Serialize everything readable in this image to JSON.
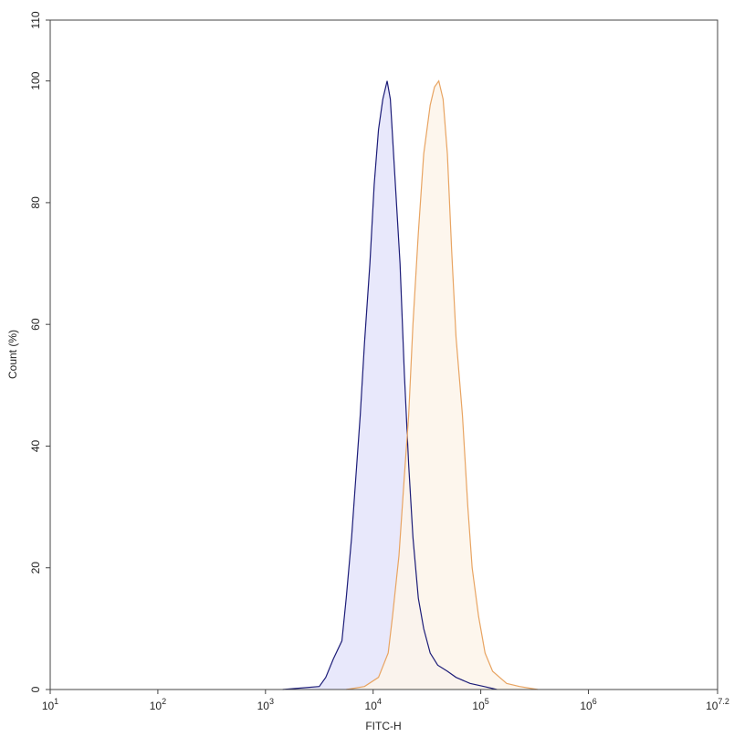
{
  "chart_data": {
    "type": "area",
    "xlabel": "FITC-H",
    "ylabel": "Count (%)",
    "xscale": "log",
    "xlim": [
      10,
      15848932
    ],
    "ylim": [
      0,
      110
    ],
    "xticks": [
      {
        "value": 10,
        "label": "10^1"
      },
      {
        "value": 100,
        "label": "10^2"
      },
      {
        "value": 1000,
        "label": "10^3"
      },
      {
        "value": 10000,
        "label": "10^4"
      },
      {
        "value": 100000,
        "label": "10^5"
      },
      {
        "value": 1000000,
        "label": "10^6"
      },
      {
        "value": 15848932,
        "label": "10^7.2"
      }
    ],
    "yticks": [
      0,
      20,
      40,
      60,
      80,
      100,
      110
    ],
    "series": [
      {
        "color": "#1c1c78",
        "fill": "#e4e4fa",
        "x": [
          1445,
          3162,
          3631,
          4266,
          5129,
          5623,
          6310,
          6918,
          7586,
          8318,
          9333,
          10233,
          11220,
          12303,
          13490,
          14454,
          15849,
          17783,
          19498,
          21380,
          23442,
          26303,
          29512,
          33884,
          39811,
          48978,
          58884,
          79433,
          107152,
          141254
        ],
        "values": [
          0,
          0.5,
          2,
          5,
          8,
          15,
          25,
          35,
          45,
          57,
          70,
          83,
          92,
          97,
          100,
          97,
          85,
          70,
          52,
          37,
          25,
          15,
          10,
          6,
          4,
          3,
          2,
          1,
          0.5,
          0
        ]
      },
      {
        "color": "#e8a462",
        "fill": "#fdf4ea",
        "x": [
          5623,
          8318,
          11220,
          13804,
          15136,
          17378,
          19498,
          21380,
          23442,
          26303,
          29512,
          33884,
          37154,
          40738,
          44668,
          48978,
          53703,
          58884,
          67608,
          75858,
          83176,
          95499,
          109648,
          128825,
          173780,
          229087,
          338844
        ],
        "values": [
          0,
          0.5,
          2,
          6,
          12,
          22,
          35,
          45,
          60,
          75,
          88,
          96,
          99,
          100,
          97,
          88,
          72,
          58,
          45,
          30,
          20,
          12,
          6,
          3,
          1,
          0.5,
          0
        ]
      }
    ]
  }
}
